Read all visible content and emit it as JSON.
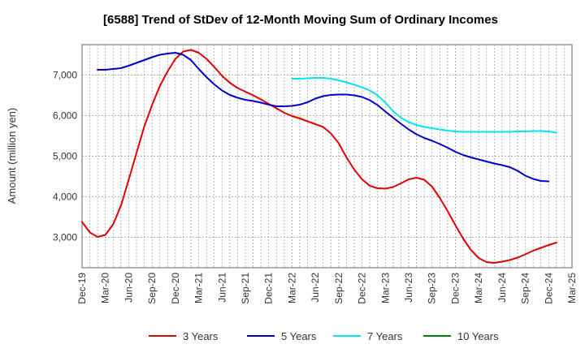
{
  "chart_data": {
    "type": "line",
    "title": "[6588]  Trend of StDev of 12-Month Moving Sum of Ordinary Incomes",
    "xlabel": "",
    "ylabel": "Amount (million yen)",
    "ylim": [
      2250,
      7750
    ],
    "yticks": [
      3000,
      4000,
      5000,
      6000,
      7000
    ],
    "ytick_labels": [
      "3,000",
      "4,000",
      "5,000",
      "6,000",
      "7,000"
    ],
    "xtick_labels": [
      "Dec-19",
      "Mar-20",
      "Jun-20",
      "Sep-20",
      "Dec-20",
      "Mar-21",
      "Jun-21",
      "Sep-21",
      "Dec-21",
      "Mar-22",
      "Jun-22",
      "Sep-22",
      "Dec-22",
      "Mar-23",
      "Jun-23",
      "Sep-23",
      "Dec-23",
      "Mar-24",
      "Jun-24",
      "Sep-24",
      "Dec-24",
      "Mar-25"
    ],
    "months_span": 63,
    "grid": true,
    "legend_position": "bottom",
    "series": [
      {
        "name": "3 Years",
        "color": "#e00000",
        "start_month": 0,
        "values": [
          3380,
          3120,
          3010,
          3060,
          3320,
          3780,
          4420,
          5080,
          5730,
          6260,
          6730,
          7090,
          7400,
          7580,
          7620,
          7550,
          7400,
          7200,
          6980,
          6810,
          6680,
          6590,
          6500,
          6400,
          6290,
          6180,
          6070,
          5990,
          5930,
          5860,
          5790,
          5720,
          5560,
          5320,
          4970,
          4670,
          4430,
          4270,
          4210,
          4200,
          4240,
          4330,
          4430,
          4470,
          4420,
          4250,
          3970,
          3650,
          3300,
          2970,
          2690,
          2490,
          2390,
          2370,
          2400,
          2440,
          2500,
          2580,
          2670,
          2740,
          2810,
          2870
        ]
      },
      {
        "name": "5 Years",
        "color": "#0000cc",
        "start_month": 2,
        "values": [
          7130,
          7130,
          7150,
          7170,
          7230,
          7300,
          7370,
          7440,
          7500,
          7530,
          7550,
          7500,
          7370,
          7150,
          6950,
          6770,
          6620,
          6510,
          6440,
          6390,
          6360,
          6320,
          6270,
          6230,
          6230,
          6240,
          6270,
          6330,
          6420,
          6480,
          6510,
          6520,
          6520,
          6500,
          6460,
          6380,
          6260,
          6100,
          5950,
          5800,
          5660,
          5540,
          5450,
          5380,
          5300,
          5210,
          5110,
          5030,
          4970,
          4920,
          4870,
          4820,
          4780,
          4730,
          4640,
          4520,
          4440,
          4390,
          4380
        ]
      },
      {
        "name": "7 Years",
        "color": "#00e5ee",
        "start_month": 27,
        "values": [
          6910,
          6910,
          6920,
          6930,
          6930,
          6910,
          6870,
          6820,
          6760,
          6700,
          6620,
          6500,
          6320,
          6110,
          5950,
          5840,
          5770,
          5720,
          5690,
          5660,
          5630,
          5610,
          5600,
          5600,
          5600,
          5600,
          5600,
          5600,
          5600,
          5610,
          5610,
          5620,
          5620,
          5610,
          5580
        ]
      },
      {
        "name": "10 Years",
        "color": "#008000",
        "start_month": 0,
        "values": []
      }
    ]
  }
}
